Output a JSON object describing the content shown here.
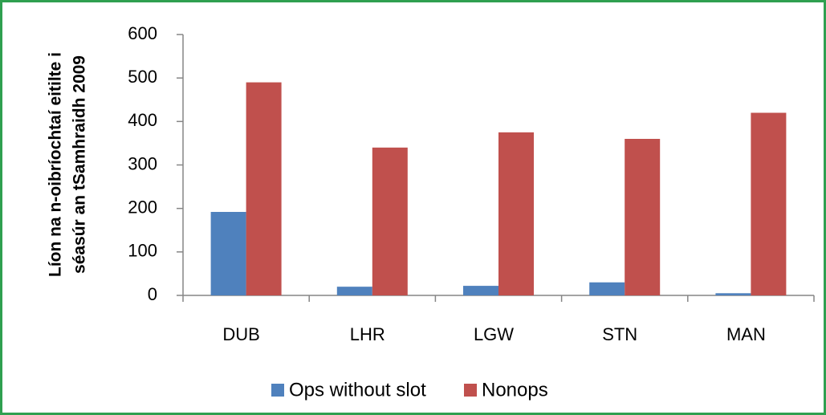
{
  "chart_data": {
    "type": "bar",
    "y_label": [
      "Líon na n-oibríochtaí eitilte i",
      "séasúr an tSamhraidh 2009"
    ],
    "categories": [
      "DUB",
      "LHR",
      "LGW",
      "STN",
      "MAN"
    ],
    "series": [
      {
        "name": "Ops without slot",
        "color": "#4f81bd",
        "values": [
          192,
          20,
          22,
          30,
          5
        ]
      },
      {
        "name": "Nonops",
        "color": "#c0504d",
        "values": [
          490,
          340,
          375,
          360,
          420
        ]
      }
    ],
    "ylim": [
      0,
      600
    ],
    "yticks": [
      0,
      100,
      200,
      300,
      400,
      500,
      600
    ],
    "grid": false,
    "legend": "bottom"
  }
}
